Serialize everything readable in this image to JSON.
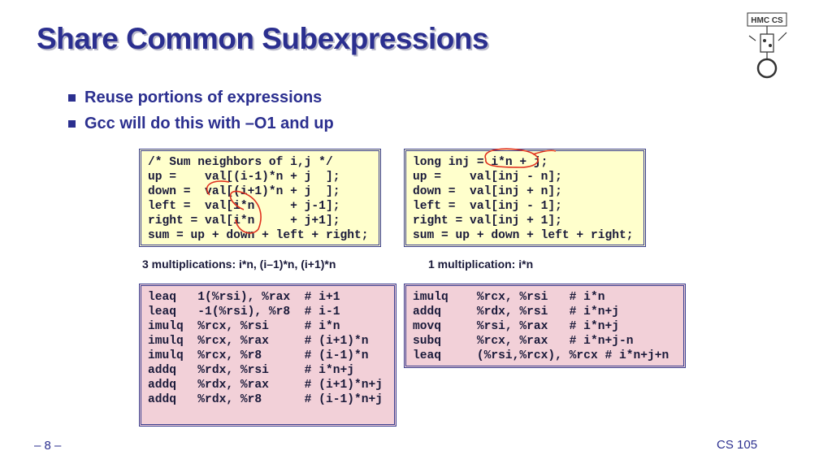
{
  "title": "Share Common Subexpressions",
  "bullets": [
    "Reuse portions of expressions",
    "Gcc will do this with –O1 and up"
  ],
  "code_boxes": [
    {
      "lines": [
        "/* Sum neighbors of i,j */",
        "up =    val[(i-1)*n + j  ];",
        "down =  val[(i+1)*n + j  ];",
        "left =  val[i*n     + j-1];",
        "right = val[i*n     + j+1];",
        "sum = up + down + left + right;"
      ]
    },
    {
      "lines": [
        "long inj = i*n + j;",
        "up =    val[inj - n];",
        "down =  val[inj + n];",
        "left =  val[inj - 1];",
        "right = val[inj + 1];",
        "sum = up + down + left + right;"
      ]
    },
    {
      "lines": [
        "leaq   1(%rsi), %rax  # i+1",
        "leaq   -1(%rsi), %r8  # i-1",
        "imulq  %rcx, %rsi     # i*n",
        "imulq  %rcx, %rax     # (i+1)*n",
        "imulq  %rcx, %r8      # (i-1)*n",
        "addq   %rdx, %rsi     # i*n+j",
        "addq   %rdx, %rax     # (i+1)*n+j",
        "addq   %rdx, %r8      # (i-1)*n+j"
      ]
    },
    {
      "lines": [
        "imulq    %rcx, %rsi   # i*n",
        "addq     %rdx, %rsi   # i*n+j",
        "movq     %rsi, %rax   # i*n+j",
        "subq     %rcx, %rax   # i*n+j-n",
        "leaq     (%rsi,%rcx), %rcx # i*n+j+n"
      ]
    }
  ],
  "captions": [
    "3 multiplications: i*n, (i–1)*n, (i+1)*n",
    "1 multiplication: i*n"
  ],
  "footer": {
    "page": "– 8 –",
    "course": "CS 105"
  },
  "logo": {
    "text": "HMC CS"
  }
}
